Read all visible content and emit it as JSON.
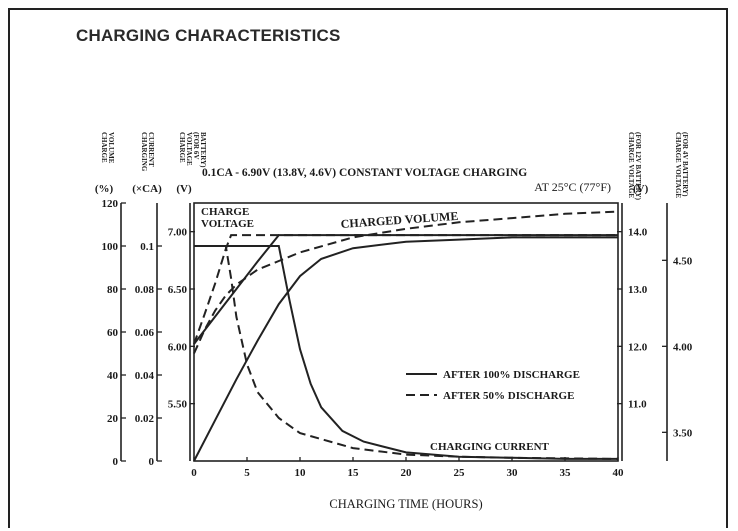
{
  "title": "CHARGING CHARACTERISTICS",
  "chart_data": {
    "type": "line",
    "title": "0.1CA - 6.90V (13.8V, 4.6V) CONSTANT VOLTAGE CHARGING",
    "subtitle": "AT 25°C (77°F)",
    "xlabel": "CHARGING TIME (HOURS)",
    "xlim": [
      0,
      40
    ],
    "x_ticks": [
      0,
      5,
      10,
      15,
      20,
      25,
      30,
      35,
      40
    ],
    "axes": {
      "charge_volume": {
        "header": [
          "CHARGE",
          "VOLUME"
        ],
        "unit": "(%)",
        "ylim": [
          0,
          120
        ],
        "ticks": [
          0,
          20,
          40,
          60,
          80,
          100,
          120
        ]
      },
      "charging_current": {
        "header": [
          "CHARGING",
          "CURRENT"
        ],
        "unit": "(×CA)",
        "ylim": [
          0,
          0.12
        ],
        "ticks": [
          0,
          0.02,
          0.04,
          0.06,
          0.08,
          0.1
        ],
        "tick_labels": [
          "0",
          "0.02",
          "0.04",
          "0.06",
          "0.08",
          "0.1"
        ]
      },
      "charge_voltage_6v": {
        "header": [
          "CHARGE",
          "VOLTAGE",
          "(FOR 6V",
          "BATTERY)"
        ],
        "unit": "(V)",
        "ylim": [
          5.0,
          7.25
        ],
        "ticks": [
          5.5,
          6.0,
          6.5,
          7.0
        ],
        "tick_labels": [
          "5.50",
          "6.00",
          "6.50",
          "7.00"
        ]
      },
      "charge_voltage_12v": {
        "header": [
          "CHARGE VOLTAGE",
          "(FOR 12V BATTERY)"
        ],
        "unit": "(V)",
        "ylim": [
          10.0,
          14.5
        ],
        "ticks": [
          11.0,
          12.0,
          13.0,
          14.0
        ],
        "tick_labels": [
          "11.0",
          "12.0",
          "13.0",
          "14.0"
        ]
      },
      "charge_voltage_4v": {
        "header": [
          "CHARGE VOLTAGE",
          "(FOR 4V BATTERY)"
        ],
        "unit": "",
        "ylim": [
          3.3333,
          4.8333
        ],
        "ticks": [
          3.5,
          4.0,
          4.5
        ],
        "tick_labels": [
          "3.50",
          "4.00",
          "4.50"
        ]
      }
    },
    "annotations": {
      "charge_voltage": [
        "CHARGE",
        "VOLTAGE"
      ],
      "charged_volume": "CHARGED VOLUME",
      "charging_current": "CHARGING CURRENT"
    },
    "legend": {
      "position": "right",
      "entries": [
        {
          "label": "AFTER 100% DISCHARGE",
          "style": "solid"
        },
        {
          "label": "AFTER 50% DISCHARGE",
          "style": "dashed"
        }
      ]
    },
    "series": [
      {
        "name": "AFTER 100% DISCHARGE",
        "quantity": "charge_voltage",
        "axis": "charge_voltage_6v",
        "style": "solid",
        "x": [
          0,
          2,
          4,
          6,
          8,
          40
        ],
        "y": [
          6.02,
          6.26,
          6.5,
          6.74,
          6.97,
          6.97
        ]
      },
      {
        "name": "AFTER 50% DISCHARGE",
        "quantity": "charge_voltage",
        "axis": "charge_voltage_6v",
        "style": "dashed",
        "x": [
          0,
          1,
          2,
          3,
          3.5,
          5,
          40
        ],
        "y": [
          6.02,
          6.28,
          6.55,
          6.85,
          6.97,
          6.97,
          6.97
        ]
      },
      {
        "name": "AFTER 100% DISCHARGE",
        "quantity": "charge_volume",
        "axis": "charge_volume",
        "style": "solid",
        "x": [
          0,
          2,
          4,
          6,
          8,
          10,
          12,
          15,
          20,
          25,
          30,
          35,
          40
        ],
        "y": [
          0,
          19,
          38,
          56,
          73,
          86,
          94,
          99,
          102,
          103,
          104,
          104,
          104
        ]
      },
      {
        "name": "AFTER 50% DISCHARGE",
        "quantity": "charge_volume",
        "axis": "charge_volume",
        "style": "dashed",
        "x": [
          0,
          1,
          2,
          3,
          4,
          6,
          8,
          10,
          15,
          20,
          25,
          30,
          35,
          40
        ],
        "y": [
          50,
          61,
          70,
          77,
          82,
          89,
          93,
          97,
          104,
          108,
          111,
          113,
          115,
          116
        ]
      },
      {
        "name": "AFTER 100% DISCHARGE",
        "quantity": "charging_current",
        "axis": "charging_current",
        "style": "solid",
        "x": [
          0,
          8,
          9,
          10,
          11,
          12,
          14,
          16,
          20,
          25,
          30,
          35,
          40
        ],
        "y": [
          0.1,
          0.1,
          0.075,
          0.052,
          0.036,
          0.025,
          0.014,
          0.009,
          0.004,
          0.002,
          0.0015,
          0.001,
          0.001
        ]
      },
      {
        "name": "AFTER 50% DISCHARGE",
        "quantity": "charging_current",
        "axis": "charging_current",
        "style": "dashed",
        "x": [
          0,
          3,
          3.5,
          4,
          5,
          6,
          8,
          10,
          15,
          20,
          25,
          30,
          40
        ],
        "y": [
          0.1,
          0.1,
          0.085,
          0.067,
          0.045,
          0.032,
          0.02,
          0.013,
          0.006,
          0.003,
          0.002,
          0.0015,
          0.001
        ]
      }
    ]
  }
}
